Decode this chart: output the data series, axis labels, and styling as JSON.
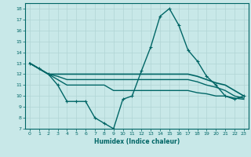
{
  "background_color": "#c8e8e8",
  "grid_color": "#b0d4d4",
  "line_color": "#006666",
  "xlabel": "Humidex (Indice chaleur)",
  "xlim": [
    -0.5,
    23.5
  ],
  "ylim": [
    7,
    18.5
  ],
  "yticks": [
    7,
    8,
    9,
    10,
    11,
    12,
    13,
    14,
    15,
    16,
    17,
    18
  ],
  "xticks": [
    0,
    1,
    2,
    3,
    4,
    5,
    6,
    7,
    8,
    9,
    10,
    11,
    12,
    13,
    14,
    15,
    16,
    17,
    18,
    19,
    20,
    21,
    22,
    23
  ],
  "lines": [
    {
      "x": [
        0,
        1,
        2,
        3,
        4,
        5,
        6,
        7,
        8,
        9,
        10,
        11,
        12,
        13,
        14,
        15,
        16,
        17,
        18,
        19,
        20,
        21,
        22,
        23
      ],
      "y": [
        13,
        12.5,
        12,
        11,
        9.5,
        9.5,
        9.5,
        8.0,
        7.5,
        7.0,
        9.7,
        10.0,
        12.3,
        14.5,
        17.3,
        18.0,
        16.5,
        14.2,
        13.2,
        11.8,
        11.0,
        10.0,
        9.7,
        10.0
      ],
      "marker": "+",
      "lw": 1.0
    },
    {
      "x": [
        0,
        1,
        2,
        3,
        4,
        5,
        6,
        7,
        8,
        9,
        10,
        11,
        12,
        13,
        14,
        15,
        16,
        17,
        18,
        19,
        20,
        21,
        22,
        23
      ],
      "y": [
        13,
        12.5,
        12,
        12,
        12,
        12,
        12,
        12,
        12,
        12,
        12,
        12,
        12,
        12,
        12,
        12,
        12,
        12,
        11.8,
        11.5,
        11.2,
        11.0,
        10.5,
        10.0
      ],
      "marker": null,
      "lw": 1.2
    },
    {
      "x": [
        0,
        1,
        2,
        3,
        4,
        5,
        6,
        7,
        8,
        9,
        10,
        11,
        12,
        13,
        14,
        15,
        16,
        17,
        18,
        19,
        20,
        21,
        22,
        23
      ],
      "y": [
        13,
        12.5,
        12,
        11.8,
        11.5,
        11.5,
        11.5,
        11.5,
        11.5,
        11.5,
        11.5,
        11.5,
        11.5,
        11.5,
        11.5,
        11.5,
        11.5,
        11.5,
        11.3,
        11.0,
        10.8,
        10.5,
        10.0,
        9.8
      ],
      "marker": null,
      "lw": 1.0
    },
    {
      "x": [
        0,
        1,
        2,
        3,
        4,
        5,
        6,
        7,
        8,
        9,
        10,
        11,
        12,
        13,
        14,
        15,
        16,
        17,
        18,
        19,
        20,
        21,
        22,
        23
      ],
      "y": [
        13,
        12.5,
        12,
        11.5,
        11.0,
        11.0,
        11.0,
        11.0,
        11.0,
        10.5,
        10.5,
        10.5,
        10.5,
        10.5,
        10.5,
        10.5,
        10.5,
        10.5,
        10.3,
        10.2,
        10.0,
        10.0,
        9.8,
        9.7
      ],
      "marker": null,
      "lw": 1.0
    }
  ]
}
